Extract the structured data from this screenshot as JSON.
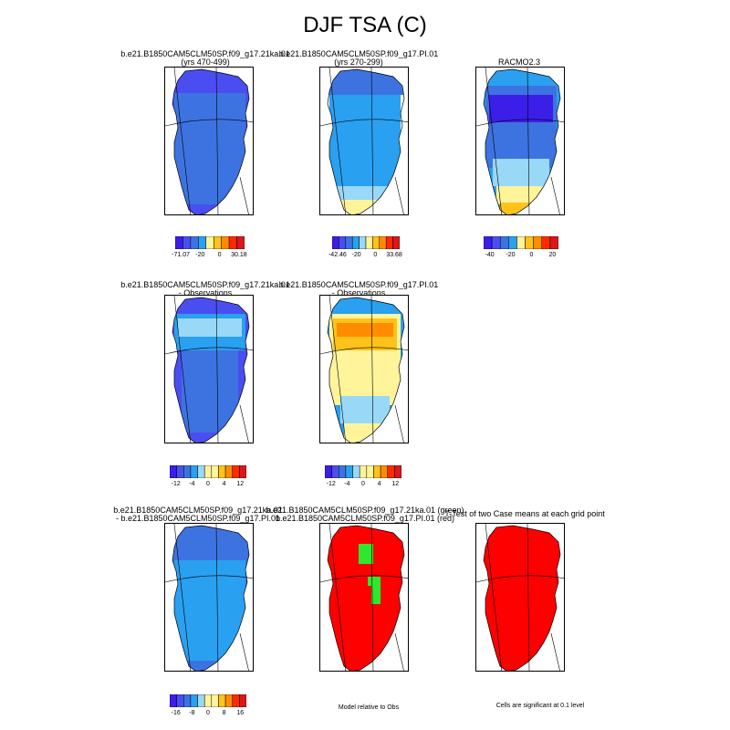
{
  "title": "DJF TSA (C)",
  "colors": {
    "c1": "#3b1ee8",
    "c2": "#4a4ef0",
    "c3": "#3d73e0",
    "c4": "#2aa0f0",
    "c5": "#9ad8f8",
    "c6": "#fff49a",
    "c7": "#ffc21a",
    "c8": "#ff8c00",
    "c9": "#ff2a00",
    "c10": "#d8181a",
    "sig_red": "#ff0000",
    "sig_green": "#2ee82e"
  },
  "panels": [
    {
      "id": "p1",
      "title1": "b.e21.B1850CAM5CLM50SP.f09_g17.21ka.01",
      "title2": "(yrs 470-499)",
      "cb_labels": [
        "-71.07",
        "-20",
        "0",
        "30.18"
      ]
    },
    {
      "id": "p2",
      "title1": "b.e21.B1850CAM5CLM50SP.f09_g17.PI.01",
      "title2": "(yrs 270-299)",
      "cb_labels": [
        "-42.46",
        "-20",
        "0",
        "33.68"
      ]
    },
    {
      "id": "p3",
      "title1": "RACMO2.3",
      "title2": "",
      "cb_labels": [
        "-40",
        "-20",
        "0",
        "20"
      ]
    },
    {
      "id": "p4",
      "title1": "b.e21.B1850CAM5CLM50SP.f09_g17.21ka.01",
      "title2": "- Observations",
      "cb_labels": [
        "-12",
        "-4",
        "0",
        "4",
        "12"
      ]
    },
    {
      "id": "p5",
      "title1": "b.e21.B1850CAM5CLM50SP.f09_g17.PI.01",
      "title2": "- Observations",
      "cb_labels": [
        "-12",
        "-4",
        "0",
        "4",
        "12"
      ]
    },
    {
      "id": "p7",
      "title1": "b.e21.B1850CAM5CLM50SP.f09_g17.21ka.01",
      "title2": "- b.e21.B1850CAM5CLM50SP.f09_g17.PI.01",
      "cb_labels": [
        "-16",
        "-8",
        "0",
        "8",
        "16"
      ]
    },
    {
      "id": "p8",
      "title1": "b.e21.B1850CAM5CLM50SP.f09_g17.21ka.01 (green)",
      "title2": "b.e21.B1850CAM5CLM50SP.f09_g17.PI.01 (red)",
      "note": "Model relative to Obs"
    },
    {
      "id": "p9",
      "title1": "T-Test of two Case means at each grid point",
      "title2": "",
      "note": "Cells are significant at 0.1 level"
    }
  ]
}
